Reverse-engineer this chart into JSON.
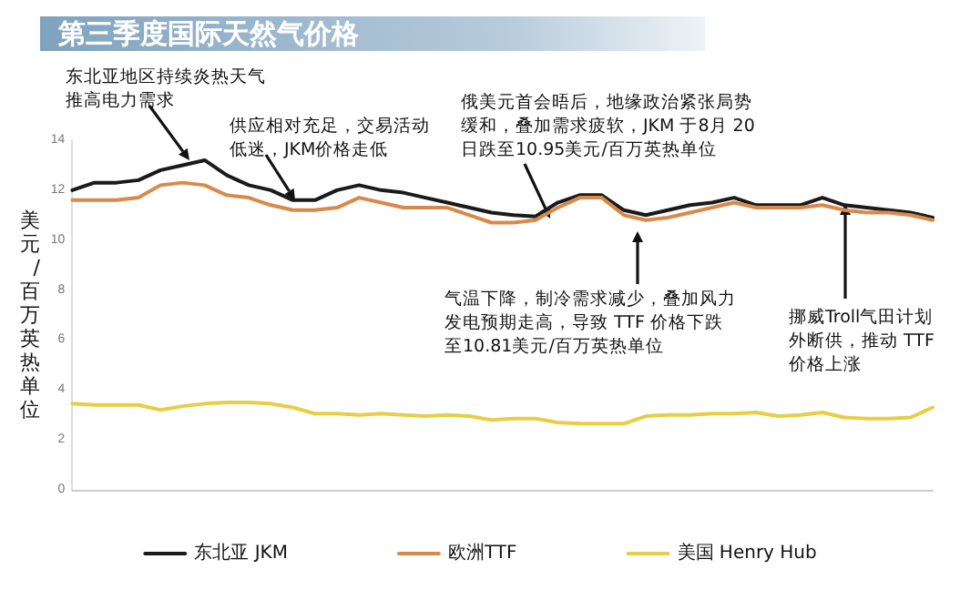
{
  "chart_data": {
    "type": "line",
    "title": "第三季度国际天然气价格",
    "ylabel": "美元/百万英热单位",
    "categories": [
      null,
      null,
      null,
      null,
      null,
      null,
      null,
      null,
      null,
      null,
      null,
      null,
      null,
      null,
      null,
      null,
      null,
      null,
      null,
      null,
      null,
      null,
      null,
      null,
      null,
      null,
      null,
      null,
      null,
      null,
      null,
      null,
      null,
      null,
      null,
      null,
      null,
      null,
      null,
      null
    ],
    "series": [
      {
        "name": "东北亚 JKM",
        "color": "#1a1a1a",
        "values": [
          12.0,
          12.3,
          12.3,
          12.4,
          12.8,
          13.0,
          13.2,
          12.6,
          12.2,
          12.0,
          11.6,
          11.6,
          12.0,
          12.2,
          12.0,
          11.9,
          11.7,
          11.5,
          11.3,
          11.1,
          11.0,
          10.95,
          11.5,
          11.8,
          11.8,
          11.2,
          11.0,
          11.2,
          11.4,
          11.5,
          11.7,
          11.4,
          11.4,
          11.4,
          11.7,
          11.4,
          11.3,
          11.2,
          11.1,
          10.9
        ]
      },
      {
        "name": "欧洲TTF",
        "color": "#d9894a",
        "values": [
          11.6,
          11.6,
          11.6,
          11.7,
          12.2,
          12.3,
          12.2,
          11.8,
          11.7,
          11.4,
          11.2,
          11.2,
          11.3,
          11.7,
          11.5,
          11.3,
          11.3,
          11.3,
          11.0,
          10.7,
          10.7,
          10.8,
          11.3,
          11.7,
          11.7,
          11.0,
          10.8,
          10.9,
          11.1,
          11.3,
          11.5,
          11.3,
          11.3,
          11.3,
          11.4,
          11.2,
          11.1,
          11.1,
          11.0,
          10.8
        ]
      },
      {
        "name": "美国 Henry Hub",
        "color": "#e6cf45",
        "values": [
          3.45,
          3.4,
          3.4,
          3.4,
          3.2,
          3.35,
          3.45,
          3.5,
          3.5,
          3.45,
          3.3,
          3.05,
          3.05,
          3.0,
          3.05,
          3.0,
          2.95,
          3.0,
          2.95,
          2.8,
          2.85,
          2.85,
          2.7,
          2.65,
          2.65,
          2.65,
          2.95,
          3.0,
          3.0,
          3.05,
          3.05,
          3.1,
          2.95,
          3.0,
          3.1,
          2.9,
          2.85,
          2.85,
          2.9,
          3.3
        ]
      }
    ],
    "ylim": [
      0,
      14
    ],
    "yticks": [
      0,
      2,
      4,
      6,
      8,
      10,
      12,
      14
    ],
    "grid": false,
    "legend": "bottom",
    "marker": "none",
    "line_style": "solid",
    "annotations": [
      "东北亚地区持续炎热天气推高电力需求",
      "供应相对充足，交易活动低迷，JKM价格走低",
      "俄美元首会晤后，地缘政治紧张局势缓和，叠加需求疲软，JKM 于8月 20日跌至10.95美元/百万英热单位",
      "气温下降，制冷需求减少，叠加风力发电预期走高，导致 TTF 价格下跌至10.81美元/百万英热单位",
      "挪威Troll气田计划外断供，推动 TTF 价格上涨"
    ]
  }
}
